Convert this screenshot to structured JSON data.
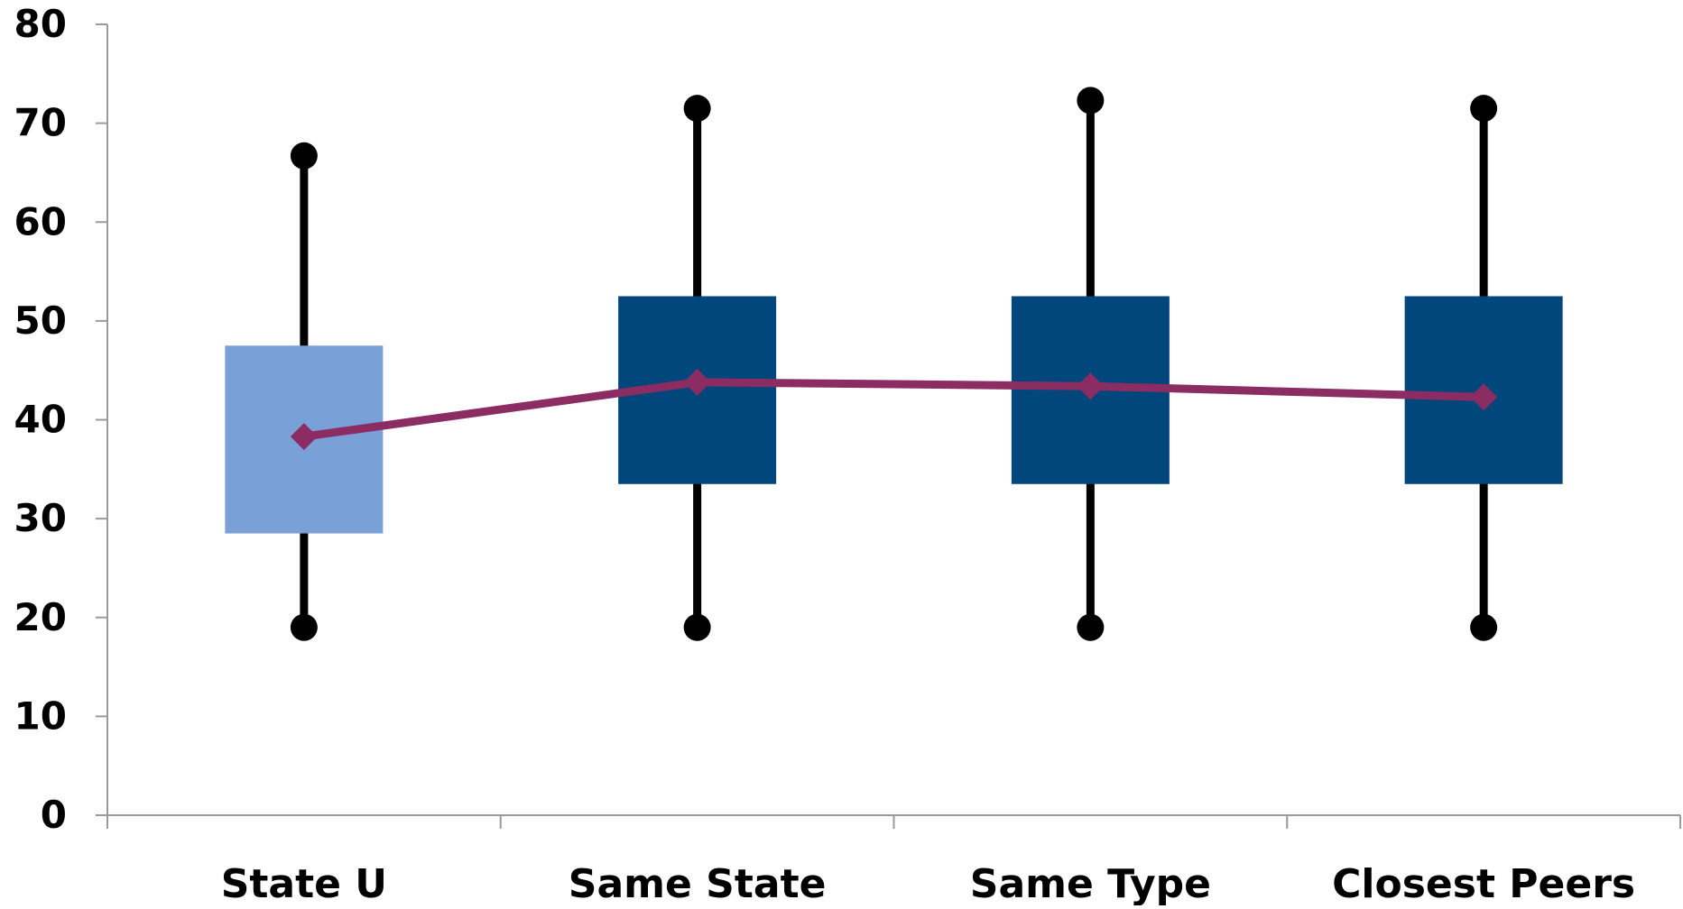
{
  "chart_data": {
    "type": "box",
    "categories": [
      "State U",
      "Same State",
      "Same Type",
      "Closest Peers"
    ],
    "boxes": [
      {
        "category": "State U",
        "whisker_low": 19,
        "q1": 28.5,
        "q3": 47.5,
        "whisker_high": 66.7,
        "color": "#7aa0d8"
      },
      {
        "category": "Same State",
        "whisker_low": 19,
        "q1": 33.5,
        "q3": 52.5,
        "whisker_high": 71.5,
        "color": "#02477b"
      },
      {
        "category": "Same Type",
        "whisker_low": 19,
        "q1": 33.5,
        "q3": 52.5,
        "whisker_high": 72.3,
        "color": "#02477b"
      },
      {
        "category": "Closest Peers",
        "whisker_low": 19,
        "q1": 33.5,
        "q3": 52.5,
        "whisker_high": 71.5,
        "color": "#02477b"
      }
    ],
    "line_series": {
      "values": [
        38.3,
        43.8,
        43.4,
        42.3
      ],
      "color": "#8b2c62",
      "marker": "diamond"
    },
    "y_ticks": [
      "0",
      "10",
      "20",
      "30",
      "40",
      "50",
      "60",
      "70",
      "80"
    ],
    "ylim": [
      0,
      80
    ],
    "title": "",
    "xlabel": "",
    "ylabel": "",
    "grid": false,
    "legend": "none",
    "colors": {
      "axis": "#9a9a9a",
      "whisker": "#000000"
    }
  }
}
